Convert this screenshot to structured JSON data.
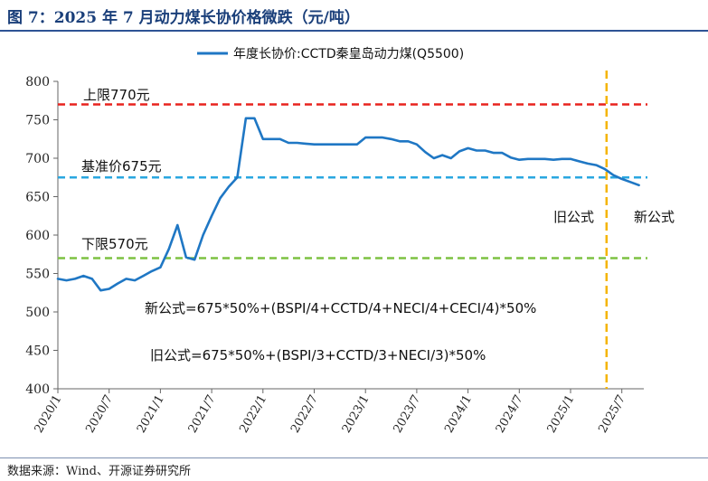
{
  "figure": {
    "title": "图 7：2025 年 7 月动力煤长协价格微跌（元/吨）",
    "source": "数据来源：Wind、开源证券研究所"
  },
  "chart_data": {
    "type": "line",
    "ylim": [
      400,
      800
    ],
    "yticks": [
      400,
      450,
      500,
      550,
      600,
      650,
      700,
      750,
      800
    ],
    "xticks": [
      "2020/1",
      "2020/7",
      "2021/1",
      "2021/7",
      "2022/1",
      "2022/7",
      "2023/1",
      "2023/7",
      "2024/1",
      "2024/7",
      "2025/1",
      "2025/7"
    ],
    "x_start": "2020/1",
    "legend": "top-center",
    "series": [
      {
        "name": "年度长协价:CCTD秦皇岛动力煤(Q5500)",
        "color": "#1f77c4",
        "values": [
          543,
          541,
          543,
          547,
          543,
          528,
          530,
          537,
          543,
          541,
          547,
          553,
          558,
          582,
          613,
          571,
          568,
          600,
          625,
          648,
          663,
          675,
          752,
          752,
          725,
          725,
          725,
          720,
          720,
          719,
          718,
          718,
          718,
          718,
          718,
          718,
          727,
          727,
          727,
          725,
          722,
          722,
          718,
          708,
          700,
          704,
          700,
          709,
          713,
          710,
          710,
          707,
          707,
          701,
          698,
          699,
          699,
          699,
          698,
          699,
          699,
          696,
          693,
          691,
          686,
          678,
          673,
          669,
          665
        ]
      }
    ],
    "reference_lines": [
      {
        "label": "上限770元",
        "value": 770,
        "color": "#e8231f"
      },
      {
        "label": "基准价675元",
        "value": 675,
        "color": "#2aa7e0"
      },
      {
        "label": "下限570元",
        "value": 570,
        "color": "#7dc242"
      }
    ],
    "vertical_marker": {
      "x": "2025/5",
      "color": "#f5b400"
    },
    "annotations": {
      "old_formula_tag": "旧公式",
      "new_formula_tag": "新公式",
      "new_formula": "新公式=675*50%+(BSPI/4+CCTD/4+NECI/4+CECI/4)*50%",
      "old_formula": "旧公式=675*50%+(BSPI/3+CCTD/3+NECI/3)*50%"
    }
  }
}
